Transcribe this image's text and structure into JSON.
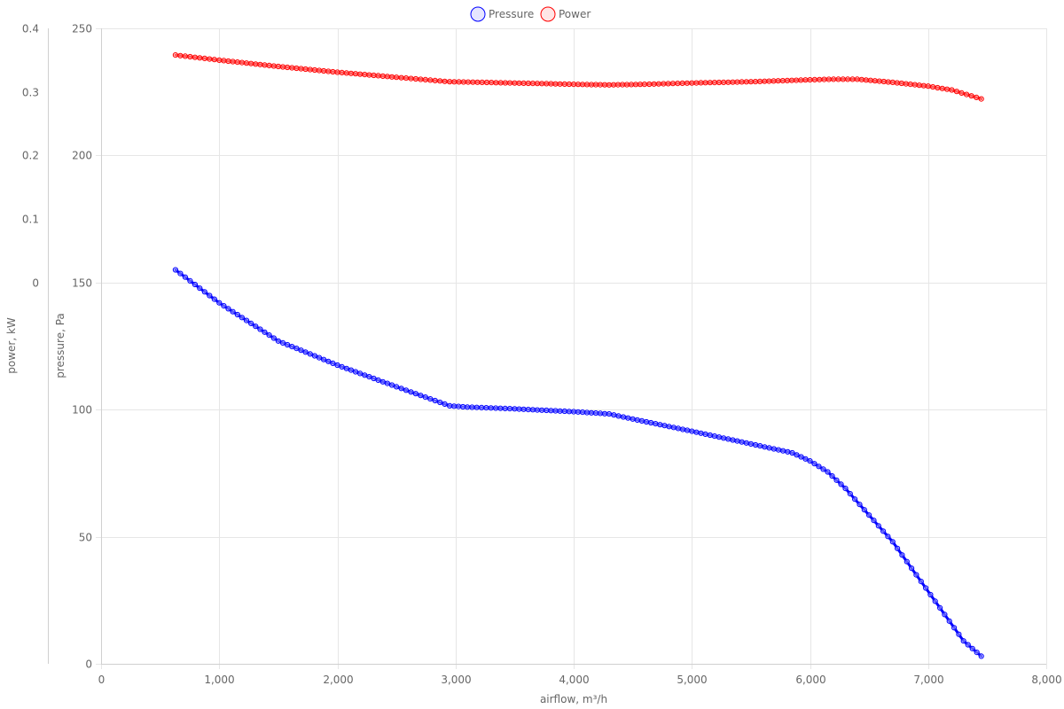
{
  "chart_data": {
    "type": "line",
    "xlabel": "airflow, m³/h",
    "y_left_outer_label": "power, kW",
    "y_left_inner_label": "pressure, Pa",
    "xlim": [
      0,
      8000
    ],
    "x_ticks": [
      "0",
      "1,000",
      "2,000",
      "3,000",
      "4,000",
      "5,000",
      "6,000",
      "7,000",
      "8,000"
    ],
    "pressure_axis": {
      "range": [
        0,
        250
      ],
      "ticks": [
        "0",
        "50",
        "100",
        "150",
        "200",
        "250"
      ]
    },
    "power_axis": {
      "range": [
        -0.6,
        0.4
      ],
      "ticks": [
        "0",
        "0.1",
        "0.2",
        "0.3",
        "0.4"
      ]
    },
    "grid": true,
    "legend_position": "top-center",
    "series": [
      {
        "name": "Pressure",
        "axis": "pressure",
        "color": "#0000ff",
        "x": [
          630,
          1000,
          1500,
          2000,
          2500,
          2950,
          3100,
          3500,
          4000,
          4300,
          4500,
          5000,
          5500,
          5850,
          6000,
          6150,
          6300,
          6500,
          6700,
          6900,
          7100,
          7300,
          7450
        ],
        "y": [
          155,
          142,
          127,
          117.5,
          109,
          101.5,
          101,
          100.3,
          99.2,
          98.3,
          96.3,
          91.5,
          86.5,
          83,
          79.8,
          75.5,
          69,
          58.5,
          48,
          35,
          22,
          9,
          3
        ]
      },
      {
        "name": "Power",
        "axis": "power",
        "color": "#ff0000",
        "x": [
          630,
          1000,
          1500,
          2000,
          2500,
          2950,
          3500,
          4000,
          4300,
          4600,
          5000,
          5500,
          6000,
          6200,
          6400,
          6700,
          7000,
          7200,
          7450
        ],
        "y": [
          0.358,
          0.35,
          0.34,
          0.331,
          0.323,
          0.316,
          0.314,
          0.312,
          0.311,
          0.312,
          0.314,
          0.316,
          0.319,
          0.32,
          0.32,
          0.315,
          0.309,
          0.303,
          0.289
        ]
      }
    ]
  }
}
